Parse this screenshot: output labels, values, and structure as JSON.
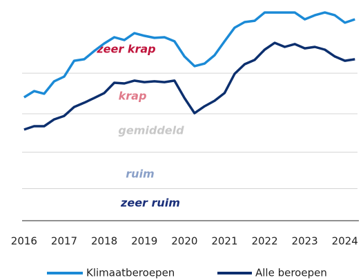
{
  "chart_data": {
    "type": "line",
    "x": [
      2016,
      2016.25,
      2016.5,
      2016.75,
      2017,
      2017.25,
      2017.5,
      2017.75,
      2018,
      2018.25,
      2018.5,
      2018.75,
      2019,
      2019.25,
      2019.5,
      2019.75,
      2020,
      2020.25,
      2020.5,
      2020.75,
      2021,
      2021.25,
      2021.5,
      2021.75,
      2022,
      2022.25,
      2022.5,
      2022.75,
      2023,
      2023.25,
      2023.5,
      2023.75,
      2024,
      2024.25
    ],
    "series": [
      {
        "name": "Klimaatberoepen",
        "color": "#1b8ad6",
        "values": [
          57.7,
          60.6,
          59.4,
          65.2,
          67.4,
          74.8,
          75.5,
          79.4,
          82.9,
          85.8,
          84.5,
          87.7,
          86.5,
          85.5,
          85.8,
          83.9,
          76.8,
          72.3,
          73.5,
          77.4,
          83.9,
          90.3,
          92.9,
          93.5,
          97.4,
          97.4,
          97.4,
          97.4,
          94.2,
          96.1,
          97.4,
          96.1,
          92.6,
          94.2
        ]
      },
      {
        "name": "Alle beroepen",
        "color": "#0c2f6e",
        "values": [
          42.6,
          44.2,
          44.2,
          47.4,
          49.0,
          53.2,
          55.2,
          57.4,
          59.7,
          64.5,
          64.2,
          65.5,
          64.8,
          65.2,
          64.8,
          65.5,
          57.4,
          50.3,
          53.5,
          56.1,
          59.7,
          68.7,
          73.2,
          75.2,
          80.0,
          83.2,
          81.3,
          82.6,
          80.6,
          81.3,
          80.0,
          76.8,
          74.8,
          75.5
        ]
      }
    ],
    "xlim": [
      2015.95,
      2024.4
    ],
    "xticks": [
      2016,
      2017,
      2018,
      2019,
      2020,
      2021,
      2022,
      2023,
      2024
    ],
    "ylim": [
      0,
      100
    ],
    "yticks": [
      15,
      32,
      50,
      69
    ],
    "grid": true,
    "annotations": [
      {
        "text": "zeer krap",
        "color": "#c0143c"
      },
      {
        "text": "krap",
        "color": "#e07a8a"
      },
      {
        "text": "gemiddeld",
        "color": "#c8c8c8"
      },
      {
        "text": "ruim",
        "color": "#8aa0c8"
      },
      {
        "text": "zeer ruim",
        "color": "#1a2f7a"
      }
    ],
    "legend": "bottom"
  }
}
